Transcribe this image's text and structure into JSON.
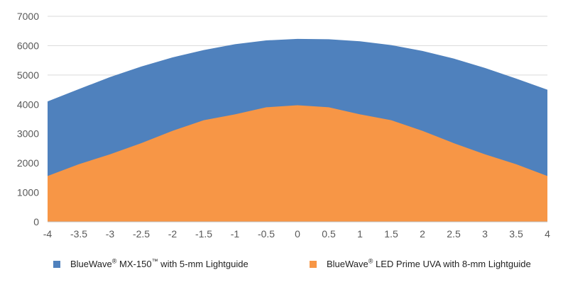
{
  "chart_data": {
    "type": "area",
    "x": [
      -4,
      -3.5,
      -3,
      -2.5,
      -2,
      -1.5,
      -1,
      -0.5,
      0,
      0.5,
      1,
      1.5,
      2,
      2.5,
      3,
      3.5,
      4
    ],
    "x_tick_labels": [
      "-4",
      "-3.5",
      "-3",
      "-2.5",
      "-2",
      "-1.5",
      "-1",
      "-0.5",
      "0",
      "0.5",
      "1",
      "1.5",
      "2",
      "2.5",
      "3",
      "3.5",
      "4"
    ],
    "y_tick_labels": [
      "0",
      "1000",
      "2000",
      "3000",
      "4000",
      "5000",
      "6000",
      "7000"
    ],
    "ylim": [
      0,
      7000
    ],
    "grid": true,
    "legend_placement": "bottom",
    "series": [
      {
        "name": "BlueWave® MX-150™ with 5-mm Lightguide",
        "name_parts": {
          "pre": "BlueWave",
          "sup1": "®",
          "mid": " MX-150",
          "sup2": "™",
          "post": " with 5-mm Lightguide"
        },
        "color": "#4F81BD",
        "values": [
          4100,
          4520,
          4930,
          5290,
          5600,
          5850,
          6050,
          6180,
          6230,
          6220,
          6150,
          6020,
          5820,
          5560,
          5240,
          4880,
          4500
        ]
      },
      {
        "name": "BlueWave® LED Prime UVA with 8-mm Lightguide",
        "name_parts": {
          "pre": "BlueWave",
          "sup1": "®",
          "mid": " LED Prime UVA with 8-mm Lightguide",
          "sup2": "",
          "post": ""
        },
        "color": "#F79646",
        "values": [
          1560,
          1960,
          2300,
          2680,
          3100,
          3460,
          3660,
          3900,
          3970,
          3900,
          3660,
          3460,
          3100,
          2680,
          2300,
          1960,
          1560
        ]
      }
    ]
  }
}
